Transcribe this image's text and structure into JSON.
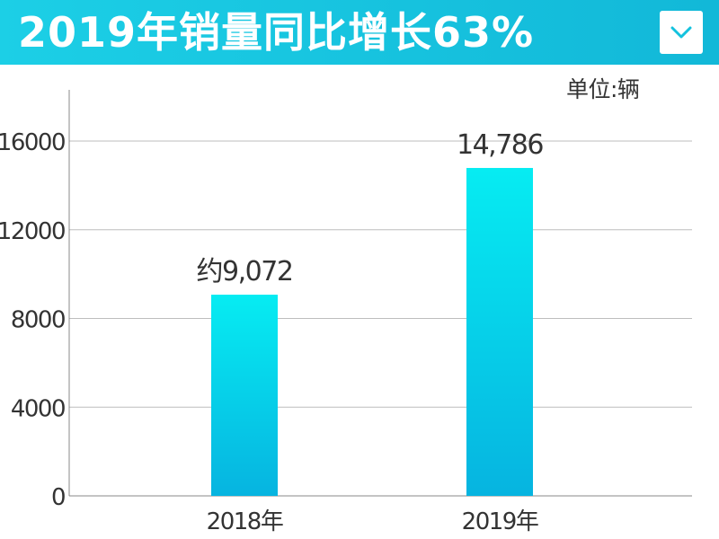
{
  "header": {
    "title": "2019年销量同比增长63%",
    "accent_color": "#14c2de",
    "dropdown_icon": "chevron-down-icon"
  },
  "chart_data": {
    "type": "bar",
    "title": "2019年销量同比增长63%",
    "unit_label": "单位:辆",
    "categories": [
      "2018年",
      "2019年"
    ],
    "values": [
      9072,
      14786
    ],
    "value_labels": [
      "约9,072",
      "14,786"
    ],
    "ylim": [
      0,
      16000
    ],
    "yticks": [
      0,
      4000,
      8000,
      12000,
      16000
    ],
    "ytick_labels": [
      "0",
      "4000",
      "8000",
      "12000",
      "16000"
    ],
    "grid": true,
    "bar_color_top": "#06ecf2",
    "bar_color_bottom": "#06b4e0"
  }
}
